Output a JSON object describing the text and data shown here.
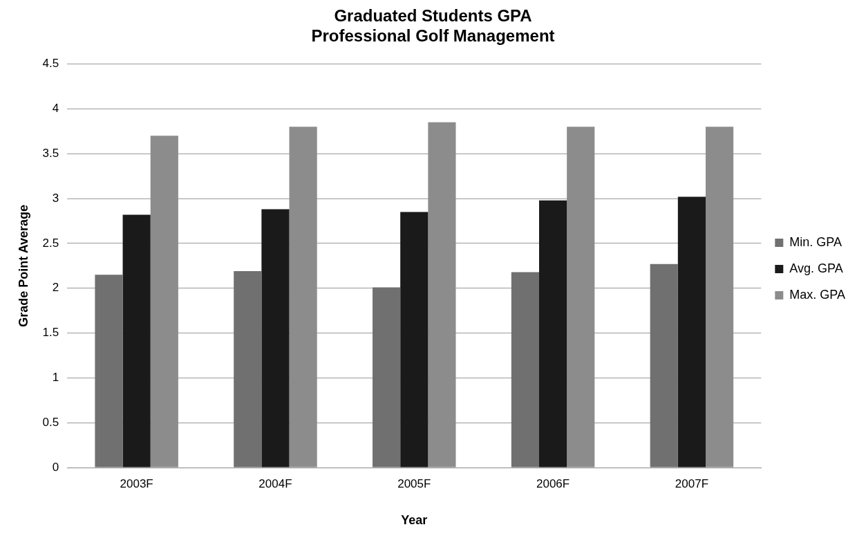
{
  "chart_data": {
    "type": "bar",
    "title": "Graduated Students GPA\nProfessional Golf Management",
    "xlabel": "Year",
    "ylabel": "Grade Point Average",
    "categories": [
      "2003F",
      "2004F",
      "2005F",
      "2006F",
      "2007F"
    ],
    "series": [
      {
        "name": "Min. GPA",
        "color": "#707070",
        "values": [
          2.15,
          2.19,
          2.01,
          2.18,
          2.27
        ]
      },
      {
        "name": "Avg. GPA",
        "color": "#1a1a1a",
        "values": [
          2.82,
          2.88,
          2.85,
          2.98,
          3.02
        ]
      },
      {
        "name": "Max. GPA",
        "color": "#8c8c8c",
        "values": [
          3.7,
          3.8,
          3.85,
          3.8,
          3.8
        ]
      }
    ],
    "ylim": [
      0,
      4.5
    ],
    "yticks": [
      0,
      0.5,
      1,
      1.5,
      2,
      2.5,
      3,
      3.5,
      4,
      4.5
    ],
    "grid": "y",
    "legend": "right"
  }
}
